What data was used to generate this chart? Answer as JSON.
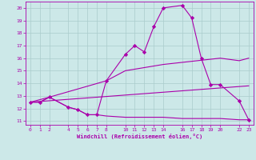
{
  "xlabel": "Windchill (Refroidissement éolien,°C)",
  "background_color": "#cce8e8",
  "grid_color": "#aacccc",
  "line_color": "#aa00aa",
  "xlim": [
    -0.5,
    23.5
  ],
  "ylim": [
    10.7,
    20.5
  ],
  "yticks": [
    11,
    12,
    13,
    14,
    15,
    16,
    17,
    18,
    19,
    20
  ],
  "xticks": [
    0,
    1,
    2,
    4,
    5,
    6,
    7,
    8,
    10,
    11,
    12,
    13,
    14,
    16,
    17,
    18,
    19,
    20,
    22,
    23
  ],
  "series1_x": [
    0,
    1,
    2,
    4,
    5,
    6,
    7,
    8,
    10,
    11,
    12,
    13,
    14,
    16,
    17,
    18,
    19,
    20,
    22,
    23
  ],
  "series1_y": [
    12.5,
    12.5,
    12.9,
    12.1,
    11.9,
    11.5,
    11.5,
    14.2,
    16.3,
    17.0,
    16.5,
    18.5,
    20.0,
    20.2,
    19.2,
    16.0,
    13.9,
    13.9,
    12.6,
    11.1
  ],
  "series2_x": [
    0,
    2,
    8,
    10,
    14,
    20,
    22,
    23
  ],
  "series2_y": [
    12.5,
    12.9,
    14.2,
    15.0,
    15.5,
    16.0,
    15.8,
    16.0
  ],
  "series3_x": [
    0,
    23
  ],
  "series3_y": [
    12.5,
    13.8
  ],
  "series4_x": [
    0,
    1,
    2,
    4,
    5,
    6,
    7,
    8,
    10,
    11,
    12,
    13,
    14,
    16,
    17,
    18,
    19,
    20,
    22,
    23
  ],
  "series4_y": [
    12.5,
    12.5,
    12.9,
    12.1,
    11.9,
    11.5,
    11.5,
    11.4,
    11.3,
    11.3,
    11.3,
    11.3,
    11.3,
    11.2,
    11.2,
    11.2,
    11.2,
    11.2,
    11.1,
    11.1
  ]
}
